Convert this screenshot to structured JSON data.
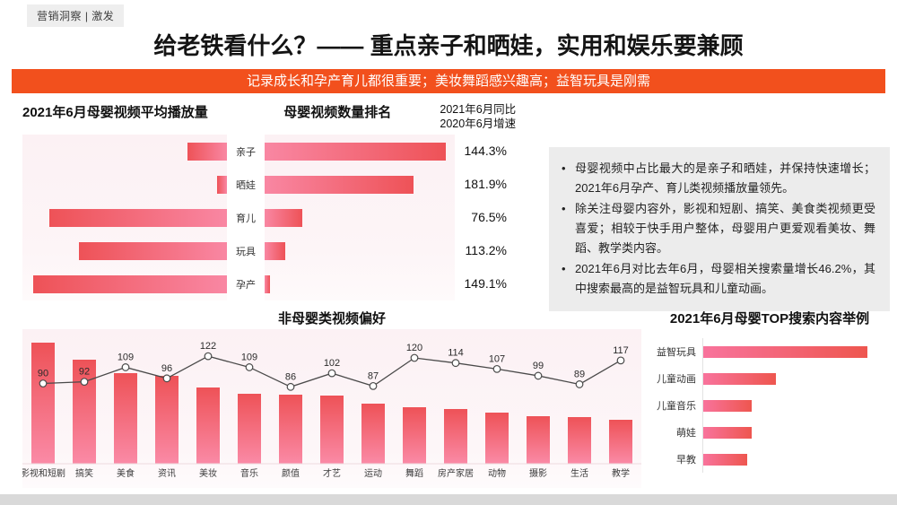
{
  "page": {
    "badge": "营销洞察 | 激发",
    "title": "给老铁看什么？—— 重点亲子和晒娃，实用和娱乐要兼顾",
    "banner": "记录成长和孕产育儿都很重要；美妆舞蹈感兴趣高；益智玩具是刚需"
  },
  "colors": {
    "banner_bg": "#f2501d",
    "bar_red": "#ee5257",
    "bar_pink": "#f987a3",
    "panel_pink_bg": "#fcf1f4",
    "note_bg": "#ececec",
    "line_color": "#4a4a4a",
    "bottom_strip": "#d9d9d9"
  },
  "butterfly": {
    "left_title": "2021年6月母婴视频平均播放量",
    "right_title": "母婴视频数量排名",
    "growth_header_1": "2021年6月同比",
    "growth_header_2": "2020年6月增速"
  },
  "notes": {
    "bullets": [
      "母婴视频中占比最大的是亲子和晒娃，并保持快速增长；2021年6月孕产、育儿类视频播放量领先。",
      "除关注母婴内容外，影视和短剧、搞笑、美食类视频更受喜爱；相较于快手用户整体，母婴用户更爱观看美妆、舞蹈、教学类内容。",
      "2021年6月对比去年6月，母婴相关搜索量增长46.2%，其中搜索最高的是益智玩具和儿童动画。"
    ]
  },
  "chart_data": [
    {
      "id": "butterfly",
      "type": "bar",
      "orientation": "horizontal-butterfly",
      "categories": [
        "亲子",
        "晒娃",
        "育儿",
        "玩具",
        "孕产"
      ],
      "series": [
        {
          "name": "2021年6月母婴视频平均播放量",
          "values": [
            44,
            11,
            198,
            165,
            216
          ]
        },
        {
          "name": "母婴视频数量排名",
          "values": [
            202,
            166,
            42,
            23,
            6
          ]
        }
      ],
      "growth_labels": [
        "144.3%",
        "181.9%",
        "76.5%",
        "113.2%",
        "149.1%"
      ],
      "value_note": "relative bar lengths, no axis shown"
    },
    {
      "id": "preference",
      "type": "bar",
      "title": "非母婴类视频偏好",
      "categories": [
        "影视和短剧",
        "搞笑",
        "美食",
        "资讯",
        "美妆",
        "音乐",
        "颜值",
        "才艺",
        "运动",
        "舞蹈",
        "房产家居",
        "动物",
        "摄影",
        "生活",
        "教学"
      ],
      "bar_values": [
        135,
        116,
        101,
        98,
        85,
        78,
        77,
        76,
        67,
        63,
        61,
        57,
        53,
        52,
        49
      ],
      "line_values": [
        90,
        92,
        109,
        96,
        122,
        109,
        86,
        102,
        87,
        120,
        114,
        107,
        99,
        89,
        117
      ],
      "legend": "none",
      "grid": "off",
      "bar_value_note": "bars unlabeled, relative heights; line values labeled on chart"
    },
    {
      "id": "top-search",
      "type": "bar",
      "orientation": "horizontal",
      "title": "2021年6月母婴TOP搜索内容举例",
      "categories": [
        "益智玩具",
        "儿童动画",
        "儿童音乐",
        "萌娃",
        "早教"
      ],
      "values": [
        183,
        81,
        54,
        54,
        49
      ],
      "value_note": "relative bar lengths, no axis shown"
    }
  ]
}
